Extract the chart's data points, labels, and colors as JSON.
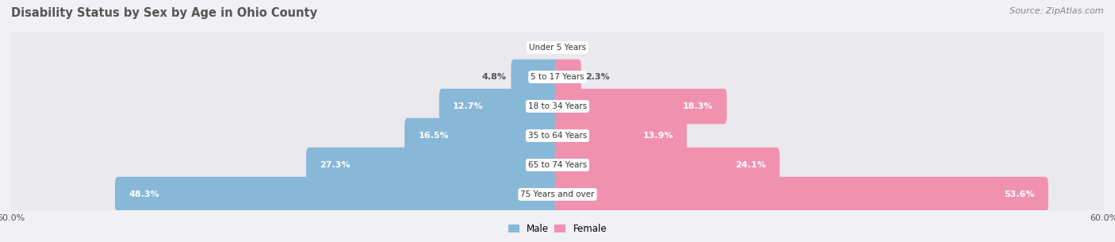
{
  "title": "Disability Status by Sex by Age in Ohio County",
  "source": "Source: ZipAtlas.com",
  "categories": [
    "Under 5 Years",
    "5 to 17 Years",
    "18 to 34 Years",
    "35 to 64 Years",
    "65 to 74 Years",
    "75 Years and over"
  ],
  "male_values": [
    0.0,
    4.8,
    12.7,
    16.5,
    27.3,
    48.3
  ],
  "female_values": [
    0.0,
    2.3,
    18.3,
    13.9,
    24.1,
    53.6
  ],
  "male_color": "#88b8d8",
  "female_color": "#f191b0",
  "row_bg_color": "#e9e9ee",
  "axis_max": 60.0,
  "title_fontsize": 10.5,
  "source_fontsize": 8,
  "label_fontsize": 8,
  "cat_fontsize": 7.5,
  "legend_fontsize": 8.5,
  "background_color": "#f0f0f5"
}
